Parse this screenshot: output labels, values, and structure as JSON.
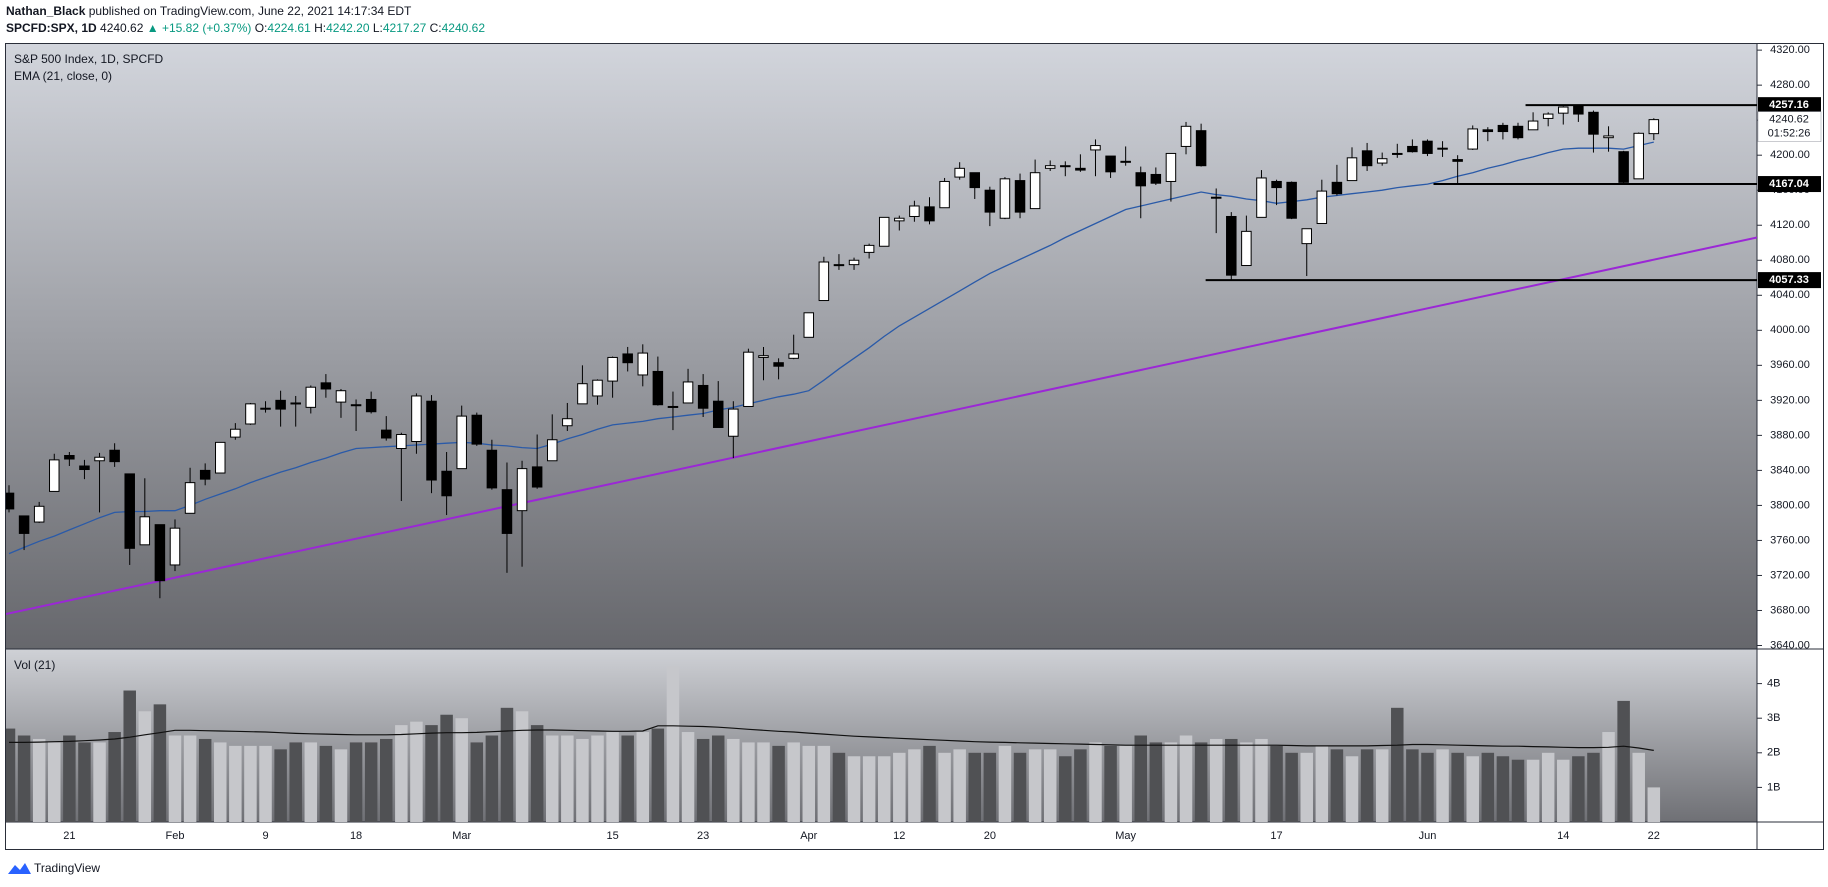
{
  "header": {
    "author": "Nathan_Black",
    "published": "published on TradingView.com, June 22, 2021 14:17:34 EDT",
    "symbol": "SPCFD:SPX, 1D",
    "last": "4240.62",
    "change": "▲ +15.82 (+0.37%)",
    "ohlc": [
      {
        "key": "O:",
        "value": "4224.61"
      },
      {
        "key": "H:",
        "value": "4242.20"
      },
      {
        "key": "L:",
        "value": "4217.27"
      },
      {
        "key": "C:",
        "value": "4240.62"
      }
    ]
  },
  "chart_data": [
    {
      "type": "candlestick",
      "title": "S&P 500 Index, 1D, SPCFD",
      "categories": [
        null,
        null,
        null,
        null,
        "21",
        null,
        null,
        null,
        null,
        null,
        null,
        "Feb",
        null,
        null,
        null,
        null,
        null,
        "9",
        null,
        null,
        null,
        null,
        null,
        "18",
        null,
        null,
        null,
        null,
        null,
        null,
        "Mar",
        null,
        null,
        null,
        null,
        null,
        null,
        null,
        null,
        null,
        "15",
        null,
        null,
        null,
        null,
        null,
        "23",
        null,
        null,
        null,
        null,
        null,
        null,
        "Apr",
        null,
        null,
        null,
        null,
        null,
        "12",
        null,
        null,
        null,
        null,
        null,
        "20",
        null,
        null,
        null,
        null,
        null,
        null,
        null,
        null,
        "May",
        null,
        null,
        null,
        null,
        null,
        null,
        null,
        null,
        null,
        "17",
        null,
        null,
        null,
        null,
        null,
        null,
        null,
        null,
        null,
        "Jun",
        null,
        null,
        null,
        null,
        null,
        null,
        null,
        null,
        "14",
        null,
        null,
        null,
        null,
        null,
        "22"
      ],
      "open": [
        3814,
        3788,
        3781,
        3816,
        3857,
        3845,
        3851,
        3863,
        3836,
        3755,
        3778,
        3732,
        3791,
        3840,
        3837,
        3878,
        3893,
        3910,
        3920,
        3917,
        3912,
        3940,
        3918,
        3915,
        3921,
        3886,
        3865,
        3873,
        3919,
        3839,
        3842,
        3903,
        3863,
        3818,
        3794,
        3844,
        3851,
        3891,
        3916,
        3925,
        3942,
        3973,
        3949,
        3953,
        3913,
        3917,
        3937,
        3919,
        3879,
        3913,
        3969,
        3963,
        3968,
        3992,
        4034,
        4075,
        4075,
        4089,
        4096,
        4125,
        4130,
        4141,
        4140,
        4175,
        4180,
        4160,
        4128,
        4171,
        4139,
        4185,
        4188,
        4185,
        4206,
        4199,
        4192,
        4180,
        4178,
        4170,
        4210,
        4228,
        4151,
        4130,
        4074,
        4129,
        4170,
        4169,
        4099,
        4122,
        4169,
        4171,
        4205,
        4191,
        4202,
        4210,
        4216,
        4207,
        4195,
        4207,
        4229,
        4234,
        4233,
        4229,
        4242,
        4248,
        4256,
        4249,
        4220,
        4204,
        4173,
        4224.61
      ],
      "high": [
        3823,
        3788,
        3804,
        3859,
        3861,
        3852,
        3860,
        3871,
        3836,
        3831,
        3778,
        3784,
        3843,
        3848,
        3872,
        3894,
        3917,
        3919,
        3931,
        3925,
        3937,
        3950,
        3933,
        3921,
        3930,
        3902,
        3883,
        3928,
        3926,
        3861,
        3914,
        3906,
        3875,
        3849,
        3851,
        3881,
        3904,
        3917,
        3960,
        3944,
        3970,
        3981,
        3984,
        3970,
        3930,
        3956,
        3950,
        3942,
        3919,
        3979,
        3981,
        3968,
        3995,
        4020,
        4084,
        4087,
        4083,
        4099,
        4129,
        4131,
        4148,
        4152,
        4174,
        4192,
        4180,
        4164,
        4175,
        4179,
        4195,
        4194,
        4193,
        4201,
        4218,
        4199,
        4210,
        4187,
        4186,
        4202,
        4238,
        4236,
        4162,
        4135,
        4131,
        4183,
        4172,
        4170,
        4116,
        4172,
        4189,
        4209,
        4214,
        4203,
        4213,
        4218,
        4218,
        4216,
        4200,
        4234,
        4232,
        4237,
        4237,
        4249,
        4249,
        4256,
        4257.16,
        4251,
        4233,
        4205,
        4226,
        4242.2
      ],
      "low": [
        3792,
        3749,
        3780,
        3816,
        3845,
        3830,
        3792,
        3844,
        3732,
        3755,
        3694,
        3725,
        3791,
        3823,
        3837,
        3875,
        3892,
        3906,
        3890,
        3890,
        3905,
        3923,
        3900,
        3885,
        3905,
        3874,
        3805,
        3859,
        3814,
        3789,
        3842,
        3868,
        3818,
        3723,
        3730,
        3819,
        3851,
        3885,
        3916,
        3915,
        3923,
        3953,
        3936,
        3914,
        3886,
        3917,
        3901,
        3889,
        3854,
        3913,
        3943,
        3944,
        3967,
        3992,
        4034,
        4069,
        4069,
        4082,
        4096,
        4114,
        4124,
        4121,
        4140,
        4172,
        4150,
        4119,
        4127,
        4128,
        4139,
        4182,
        4176,
        4181,
        4176,
        4174,
        4188,
        4128,
        4166,
        4147,
        4201,
        4187,
        4111,
        4057.33,
        4074,
        4129,
        4143,
        4127,
        4062,
        4122,
        4154,
        4171,
        4182,
        4188,
        4197,
        4203,
        4199,
        4198,
        4168,
        4206,
        4216,
        4218,
        4218,
        4229,
        4233,
        4235,
        4238,
        4203,
        4204,
        4167.04,
        4173,
        4217.27
      ],
      "close": [
        3796,
        3768,
        3799,
        3852,
        3853,
        3841,
        3855,
        3850,
        3751,
        3787,
        3714,
        3774,
        3826,
        3830,
        3872,
        3887,
        3916,
        3911,
        3910,
        3916,
        3935,
        3933,
        3931,
        3914,
        3907,
        3877,
        3881,
        3925,
        3829,
        3811,
        3902,
        3870,
        3820,
        3768,
        3842,
        3821,
        3875,
        3899,
        3939,
        3943,
        3969,
        3963,
        3974,
        3915,
        3913,
        3941,
        3911,
        3889,
        3910,
        3975,
        3971,
        3959,
        3973,
        4020,
        4078,
        4074,
        4080,
        4097,
        4129,
        4128,
        4142,
        4125,
        4170,
        4185,
        4163,
        4135,
        4173,
        4135,
        4180,
        4188,
        4187,
        4183,
        4211,
        4181,
        4193,
        4165,
        4168,
        4202,
        4233,
        4188,
        4152,
        4063,
        4113,
        4174,
        4163,
        4128,
        4116,
        4159,
        4156,
        4197,
        4188,
        4196,
        4201,
        4204,
        4202,
        4208,
        4193,
        4230,
        4227,
        4227,
        4220,
        4239,
        4247,
        4255,
        4247,
        4224,
        4222,
        4169,
        4225,
        4240.62
      ],
      "up_color": "#ffffff",
      "down_color": "#000000",
      "series": [
        {
          "name": "EMA (21, close, 0)",
          "color": "#2a5aa8",
          "values": [
            3745,
            3752,
            3759,
            3765,
            3772,
            3779,
            3786,
            3792,
            3793,
            3793,
            3794,
            3794,
            3800,
            3807,
            3813,
            3819,
            3826,
            3832,
            3838,
            3843,
            3849,
            3854,
            3860,
            3865,
            3866,
            3867,
            3868,
            3869,
            3870,
            3871,
            3872,
            3871,
            3869,
            3868,
            3866,
            3865,
            3870,
            3876,
            3881,
            3887,
            3892,
            3894,
            3896,
            3899,
            3901,
            3903,
            3905,
            3909,
            3912,
            3916,
            3920,
            3924,
            3927,
            3931,
            3943,
            3956,
            3968,
            3980,
            3993,
            4005,
            4015,
            4025,
            4035,
            4045,
            4055,
            4065,
            4073,
            4081,
            4089,
            4097,
            4106,
            4114,
            4122,
            4130,
            4138,
            4142,
            4146,
            4150,
            4154,
            4158,
            4155,
            4153,
            4150,
            4148,
            4145,
            4147,
            4149,
            4152,
            4154,
            4156,
            4158,
            4160,
            4163,
            4165,
            4167,
            4171,
            4176,
            4180,
            4185,
            4189,
            4194,
            4198,
            4203,
            4207,
            4208,
            4208,
            4208,
            4207,
            4211,
            4215
          ]
        }
      ],
      "trendline": {
        "color": "#9b27d6",
        "values": [
          3676,
          4106
        ]
      },
      "levels": [
        4257.16,
        4167.04,
        4057.33
      ],
      "last_price": 4240.62,
      "countdown": "01:52:26",
      "ylim": [
        3636,
        4327
      ],
      "yticks": [
        {
          "value": 3640,
          "label": "3640.00"
        },
        {
          "value": 3680,
          "label": "3680.00"
        },
        {
          "value": 3720,
          "label": "3720.00"
        },
        {
          "value": 3760,
          "label": "3760.00"
        },
        {
          "value": 3800,
          "label": "3800.00"
        },
        {
          "value": 3840,
          "label": "3840.00"
        },
        {
          "value": 3880,
          "label": "3880.00"
        },
        {
          "value": 3920,
          "label": "3920.00"
        },
        {
          "value": 3960,
          "label": "3960.00"
        },
        {
          "value": 4000,
          "label": "4000.00"
        },
        {
          "value": 4040,
          "label": "4040.00"
        },
        {
          "value": 4080,
          "label": "4080.00"
        },
        {
          "value": 4120,
          "label": "4120.00"
        },
        {
          "value": 4160,
          "label": "4160.00"
        },
        {
          "value": 4200,
          "label": "4200.00"
        },
        {
          "value": 4240,
          "label": "4240.00"
        },
        {
          "value": 4280,
          "label": "4280.00"
        },
        {
          "value": 4320,
          "label": "4320.00"
        }
      ]
    },
    {
      "type": "bar",
      "title": "Vol (21)",
      "up_color": "#c6c7cb",
      "down_color": "#505154",
      "values": [
        2.7,
        2.5,
        2.4,
        2.3,
        2.5,
        2.3,
        2.3,
        2.6,
        3.8,
        3.2,
        3.4,
        2.5,
        2.5,
        2.4,
        2.3,
        2.2,
        2.2,
        2.2,
        2.1,
        2.3,
        2.3,
        2.2,
        2.1,
        2.3,
        2.3,
        2.4,
        2.8,
        2.9,
        2.8,
        3.1,
        3.0,
        2.3,
        2.5,
        3.3,
        3.2,
        2.8,
        2.5,
        2.5,
        2.4,
        2.5,
        2.6,
        2.5,
        2.6,
        2.7,
        4.5,
        2.6,
        2.4,
        2.5,
        2.4,
        2.3,
        2.3,
        2.2,
        2.3,
        2.2,
        2.2,
        2.0,
        1.9,
        1.9,
        1.9,
        2.0,
        2.1,
        2.2,
        2.0,
        2.1,
        2.0,
        2.0,
        2.2,
        2.0,
        2.1,
        2.1,
        1.9,
        2.1,
        2.3,
        2.2,
        2.2,
        2.5,
        2.3,
        2.3,
        2.5,
        2.3,
        2.4,
        2.4,
        2.3,
        2.4,
        2.2,
        2.0,
        2.0,
        2.2,
        2.1,
        1.9,
        2.1,
        2.1,
        3.3,
        2.1,
        2.0,
        2.1,
        2.0,
        1.9,
        2.0,
        1.9,
        1.8,
        1.8,
        2.0,
        1.8,
        1.9,
        2.0,
        2.6,
        3.5,
        2.0,
        1.0
      ],
      "ma": {
        "color": "#111111",
        "values": [
          2.3,
          2.3,
          2.31,
          2.32,
          2.33,
          2.35,
          2.37,
          2.4,
          2.45,
          2.52,
          2.58,
          2.65,
          2.65,
          2.64,
          2.63,
          2.62,
          2.61,
          2.6,
          2.58,
          2.56,
          2.55,
          2.54,
          2.53,
          2.52,
          2.52,
          2.52,
          2.53,
          2.55,
          2.57,
          2.58,
          2.58,
          2.59,
          2.61,
          2.63,
          2.65,
          2.66,
          2.66,
          2.65,
          2.64,
          2.63,
          2.62,
          2.62,
          2.63,
          2.78,
          2.78,
          2.77,
          2.76,
          2.74,
          2.71,
          2.68,
          2.65,
          2.62,
          2.6,
          2.57,
          2.54,
          2.51,
          2.48,
          2.46,
          2.44,
          2.42,
          2.4,
          2.38,
          2.36,
          2.34,
          2.32,
          2.31,
          2.3,
          2.29,
          2.28,
          2.27,
          2.26,
          2.25,
          2.24,
          2.23,
          2.22,
          2.22,
          2.22,
          2.22,
          2.22,
          2.22,
          2.22,
          2.22,
          2.22,
          2.22,
          2.22,
          2.21,
          2.2,
          2.2,
          2.2,
          2.2,
          2.2,
          2.21,
          2.22,
          2.24,
          2.24,
          2.23,
          2.22,
          2.21,
          2.2,
          2.19,
          2.19,
          2.18,
          2.17,
          2.16,
          2.15,
          2.15,
          2.16,
          2.19,
          2.14,
          2.07
        ]
      },
      "ylim": [
        0,
        5
      ],
      "yticks": [
        {
          "value": 1,
          "label": "1B"
        },
        {
          "value": 2,
          "label": "2B"
        },
        {
          "value": 3,
          "label": "3B"
        },
        {
          "value": 4,
          "label": "4B"
        }
      ]
    }
  ],
  "footer": {
    "brand": "TradingView"
  }
}
